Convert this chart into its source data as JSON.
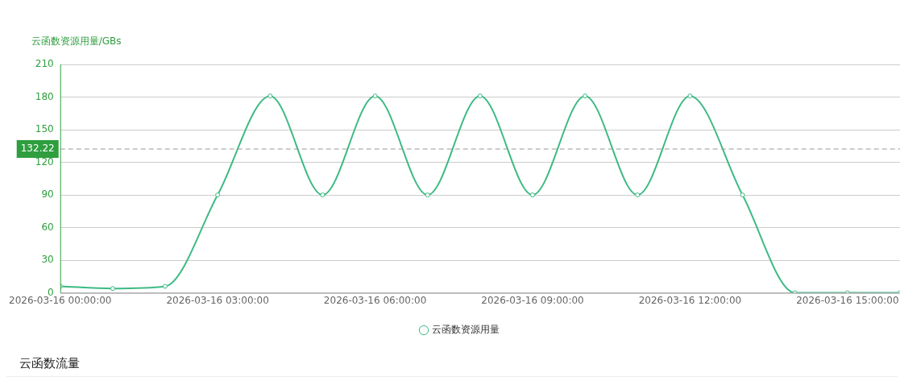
{
  "chart_data": {
    "type": "line",
    "ylabel": "云函数资源用量/GBs",
    "x": [
      "2026-03-16T00:00",
      "2026-03-16T01:00",
      "2026-03-16T02:00",
      "2026-03-16T03:00",
      "2026-03-16T04:00",
      "2026-03-16T05:00",
      "2026-03-16T06:00",
      "2026-03-16T07:00",
      "2026-03-16T08:00",
      "2026-03-16T09:00",
      "2026-03-16T10:00",
      "2026-03-16T11:00",
      "2026-03-16T12:00",
      "2026-03-16T13:00",
      "2026-03-16T14:00",
      "2026-03-16T15:00",
      "2026-03-16T16:00"
    ],
    "series": [
      {
        "name": "云函数资源用量",
        "color": "#3dba84",
        "values": [
          6,
          4,
          6,
          90,
          181,
          90,
          181,
          90,
          181,
          90,
          181,
          90,
          181,
          90,
          0,
          0,
          0
        ]
      }
    ],
    "xlim": [
      "2026-03-16T00:00",
      "2026-03-16T16:00"
    ],
    "xticks": [
      {
        "value": "2026-03-16T00:00",
        "label": "2026-03-16 00:00:00"
      },
      {
        "value": "2026-03-16T03:00",
        "label": "2026-03-16 03:00:00"
      },
      {
        "value": "2026-03-16T06:00",
        "label": "2026-03-16 06:00:00"
      },
      {
        "value": "2026-03-16T09:00",
        "label": "2026-03-16 09:00:00"
      },
      {
        "value": "2026-03-16T12:00",
        "label": "2026-03-16 12:00:00"
      },
      {
        "value": "2026-03-16T15:00",
        "label": "2026-03-16 15:00:00"
      }
    ],
    "ylim": [
      0,
      210
    ],
    "yticks": [
      0,
      30,
      60,
      90,
      120,
      150,
      180,
      210
    ],
    "ref_lines": [
      {
        "axis": "y",
        "value": 132.22,
        "label": "132.22",
        "color": "#999999",
        "line_style": "dashed"
      }
    ],
    "grid": "y",
    "legend": "bottom",
    "marker": "circle",
    "line_style": "solid",
    "annotations": [
      "云函数流量"
    ]
  }
}
